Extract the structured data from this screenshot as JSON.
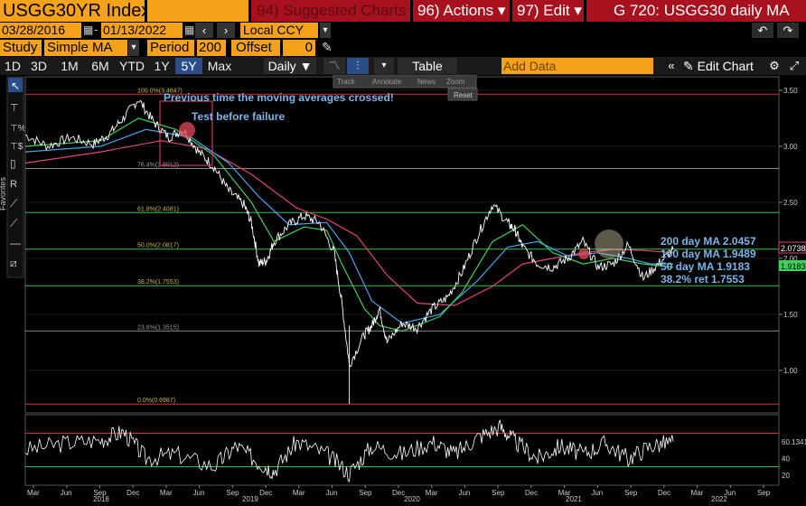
{
  "header": {
    "ticker": "USGG30YR Index",
    "suggested": "94) Suggested Charts",
    "actions": "96) Actions",
    "edit": "97) Edit",
    "title": "G 720: USGG30 daily MA"
  },
  "dates": {
    "start": "03/28/2016",
    "end": "01/13/2022",
    "currency": "Local CCY"
  },
  "study": {
    "label": "Study",
    "value": "Simple MA",
    "period_label": "Period",
    "period": "200",
    "offset_label": "Offset",
    "offset": "0"
  },
  "toolbar": {
    "ranges": [
      "1D",
      "3D",
      "1M",
      "6M",
      "YTD",
      "1Y",
      "5Y",
      "Max"
    ],
    "active_range": "5Y",
    "frequency": "Daily",
    "table": "Table",
    "add_data": "Add Data",
    "edit_chart": "Edit Chart"
  },
  "mini_toolbar": {
    "track": "Track",
    "annotate": "Annotate",
    "news": "News",
    "zoom": "Zoom",
    "reset": "Reset"
  },
  "side_tab": "Favorites",
  "annotations": {
    "crossed": "Previous time the moving averages crossed!",
    "failure": "Test before failure"
  },
  "legend": [
    {
      "text": "200 day MA 2.0457",
      "color": "#7fb3e6"
    },
    {
      "text": "100 day MA 1.9489",
      "color": "#7fb3e6"
    },
    {
      "text": "50 day MA 1.9183",
      "color": "#7fb3e6"
    },
    {
      "text": "38.2% ret 1.7553",
      "color": "#7fb3e6"
    }
  ],
  "colors": {
    "price": "#ffffff",
    "ma200": "#e0457b",
    "ma100": "#4aa3e8",
    "ma50": "#3fcf5b",
    "fib_red": "#d6303a",
    "fib_green": "#36c04a",
    "fib_grey": "#8a8a8a"
  },
  "chart_data": {
    "type": "line",
    "x_ticks": [
      "Mar",
      "Jun",
      "Sep",
      "Dec",
      "Mar",
      "Jun",
      "Sep",
      "Dec",
      "Mar",
      "Jun",
      "Sep",
      "Dec",
      "Mar",
      "Jun",
      "Sep",
      "Dec",
      "Mar",
      "Jun",
      "Sep",
      "Dec",
      "Mar",
      "Jun",
      "Sep"
    ],
    "years": [
      "2018",
      "2019",
      "2020",
      "2021",
      "2022"
    ],
    "y_ticks": [
      "3.50",
      "3.00",
      "2.50",
      "2.00",
      "1.50",
      "1.00"
    ],
    "ylim": [
      0.62,
      3.62
    ],
    "last_price": "2.0738",
    "last_ma": "1.9183",
    "fib_levels": [
      {
        "label": "100.0%(3.4647)",
        "value": 3.4647,
        "color": "red"
      },
      {
        "label": "76.4%(2.8012)",
        "value": 2.8012,
        "color": "grey"
      },
      {
        "label": "61.8%(2.4081)",
        "value": 2.4081,
        "color": "green"
      },
      {
        "label": "50.0%(2.0817)",
        "value": 2.0817,
        "color": "green"
      },
      {
        "label": "38.2%(1.7553)",
        "value": 1.7553,
        "color": "green"
      },
      {
        "label": "23.6%(1.3515)",
        "value": 1.3515,
        "color": "grey"
      },
      {
        "label": "0.0%(0.6987)",
        "value": 0.6987,
        "color": "red"
      }
    ],
    "series": [
      {
        "name": "USGG30YR",
        "x": [
          0,
          0.03,
          0.06,
          0.09,
          0.11,
          0.13,
          0.15,
          0.17,
          0.19,
          0.21,
          0.23,
          0.25,
          0.27,
          0.29,
          0.3,
          0.31,
          0.32,
          0.33,
          0.35,
          0.37,
          0.39,
          0.41,
          0.42,
          0.43,
          0.45,
          0.46,
          0.47,
          0.48,
          0.5,
          0.52,
          0.54,
          0.56,
          0.58,
          0.6,
          0.62,
          0.64,
          0.65,
          0.66,
          0.68,
          0.7,
          0.72,
          0.74,
          0.76,
          0.78,
          0.8,
          0.82,
          0.84,
          0.86
        ],
        "y": [
          3.1,
          3.0,
          3.08,
          3.02,
          3.1,
          3.25,
          3.42,
          3.22,
          3.08,
          3.15,
          2.95,
          2.82,
          2.6,
          2.48,
          2.32,
          1.95,
          1.98,
          2.15,
          2.3,
          2.38,
          2.32,
          2.05,
          1.6,
          1.05,
          1.32,
          1.4,
          1.55,
          1.25,
          1.42,
          1.38,
          1.55,
          1.65,
          1.88,
          2.2,
          2.48,
          2.32,
          2.25,
          2.1,
          1.95,
          1.92,
          2.0,
          2.15,
          1.92,
          1.95,
          2.12,
          1.82,
          1.95,
          2.08
        ]
      },
      {
        "name": "50 day MA",
        "x": [
          0,
          0.1,
          0.15,
          0.2,
          0.25,
          0.3,
          0.33,
          0.37,
          0.4,
          0.42,
          0.45,
          0.47,
          0.5,
          0.55,
          0.58,
          0.62,
          0.66,
          0.7,
          0.74,
          0.78,
          0.82,
          0.86
        ],
        "y": [
          3.0,
          3.05,
          3.25,
          3.15,
          2.92,
          2.5,
          2.15,
          2.28,
          2.25,
          1.95,
          1.55,
          1.4,
          1.35,
          1.48,
          1.7,
          2.15,
          2.3,
          2.05,
          1.95,
          2.0,
          1.95,
          1.92
        ]
      },
      {
        "name": "100 day MA",
        "x": [
          0,
          0.1,
          0.16,
          0.22,
          0.27,
          0.31,
          0.35,
          0.4,
          0.43,
          0.46,
          0.5,
          0.55,
          0.6,
          0.64,
          0.68,
          0.72,
          0.76,
          0.8,
          0.83,
          0.86
        ],
        "y": [
          2.95,
          3.0,
          3.15,
          3.08,
          2.85,
          2.55,
          2.3,
          2.32,
          2.05,
          1.62,
          1.42,
          1.5,
          1.8,
          2.1,
          2.15,
          2.02,
          2.05,
          2.0,
          1.95,
          1.95
        ]
      },
      {
        "name": "200 day MA",
        "x": [
          0,
          0.1,
          0.18,
          0.24,
          0.3,
          0.36,
          0.4,
          0.44,
          0.48,
          0.52,
          0.57,
          0.62,
          0.66,
          0.7,
          0.74,
          0.78,
          0.82,
          0.86
        ],
        "y": [
          2.85,
          2.95,
          3.05,
          2.98,
          2.75,
          2.45,
          2.35,
          2.2,
          1.85,
          1.6,
          1.58,
          1.75,
          1.95,
          2.0,
          2.05,
          2.08,
          2.07,
          2.05
        ]
      }
    ],
    "rsi": {
      "y_ticks": [
        "60.1341",
        "40",
        "20"
      ],
      "levels": [
        70,
        30
      ],
      "x": [
        0,
        0.05,
        0.1,
        0.13,
        0.16,
        0.2,
        0.25,
        0.28,
        0.31,
        0.33,
        0.36,
        0.4,
        0.43,
        0.46,
        0.5,
        0.54,
        0.57,
        0.6,
        0.63,
        0.65,
        0.68,
        0.71,
        0.74,
        0.77,
        0.8,
        0.83,
        0.86
      ],
      "y": [
        50,
        58,
        62,
        72,
        40,
        45,
        30,
        55,
        35,
        25,
        60,
        45,
        22,
        55,
        45,
        60,
        45,
        65,
        78,
        60,
        40,
        55,
        45,
        58,
        40,
        55,
        60
      ]
    }
  }
}
